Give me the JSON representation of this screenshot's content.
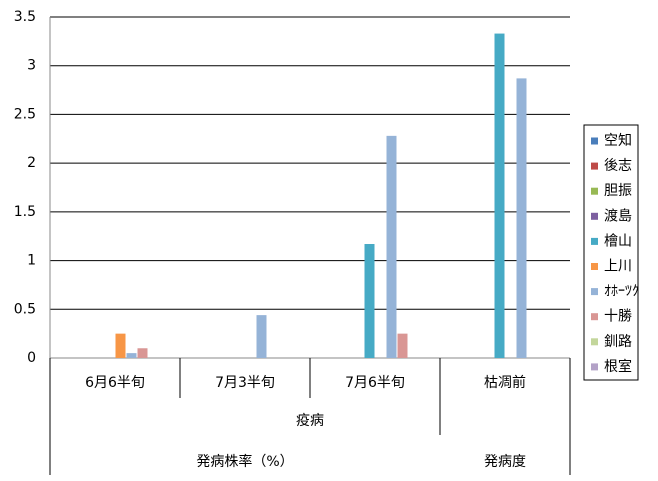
{
  "chart_data": {
    "type": "bar",
    "categories": [
      [
        "疫病",
        "発病株率（%）",
        "6月6半旬"
      ],
      [
        "疫病",
        "発病株率（%）",
        "7月3半旬"
      ],
      [
        "疫病",
        "発病株率（%）",
        "7月6半旬"
      ],
      [
        "疫病",
        "発病度",
        "枯凋前"
      ]
    ],
    "series": [
      {
        "name": "空知",
        "color": "#4a7ebb",
        "values": [
          null,
          null,
          null,
          null
        ]
      },
      {
        "name": "後志",
        "color": "#be4b48",
        "values": [
          null,
          null,
          null,
          null
        ]
      },
      {
        "name": "胆振",
        "color": "#98b954",
        "values": [
          null,
          null,
          null,
          null
        ]
      },
      {
        "name": "渡島",
        "color": "#7d60a0",
        "values": [
          null,
          null,
          null,
          null
        ]
      },
      {
        "name": "檜山",
        "color": "#46aac5",
        "values": [
          null,
          null,
          1.17,
          3.33
        ]
      },
      {
        "name": "上川",
        "color": "#f79646",
        "values": [
          0.25,
          null,
          null,
          null
        ]
      },
      {
        "name": "ｵﾎｰﾂｸ",
        "color": "#95b3d7",
        "values": [
          0.05,
          0.44,
          2.28,
          2.87
        ]
      },
      {
        "name": "十勝",
        "color": "#d99694",
        "values": [
          0.1,
          null,
          0.25,
          null
        ]
      },
      {
        "name": "釧路",
        "color": "#c3d69b",
        "values": [
          null,
          null,
          null,
          null
        ]
      },
      {
        "name": "根室",
        "color": "#b3a2c7",
        "values": [
          null,
          null,
          null,
          null
        ]
      }
    ],
    "ylim": [
      0,
      3.5
    ],
    "yticks": [
      0,
      0.5,
      1,
      1.5,
      2,
      2.5,
      3,
      3.5
    ],
    "grid": true,
    "legend": "right"
  }
}
